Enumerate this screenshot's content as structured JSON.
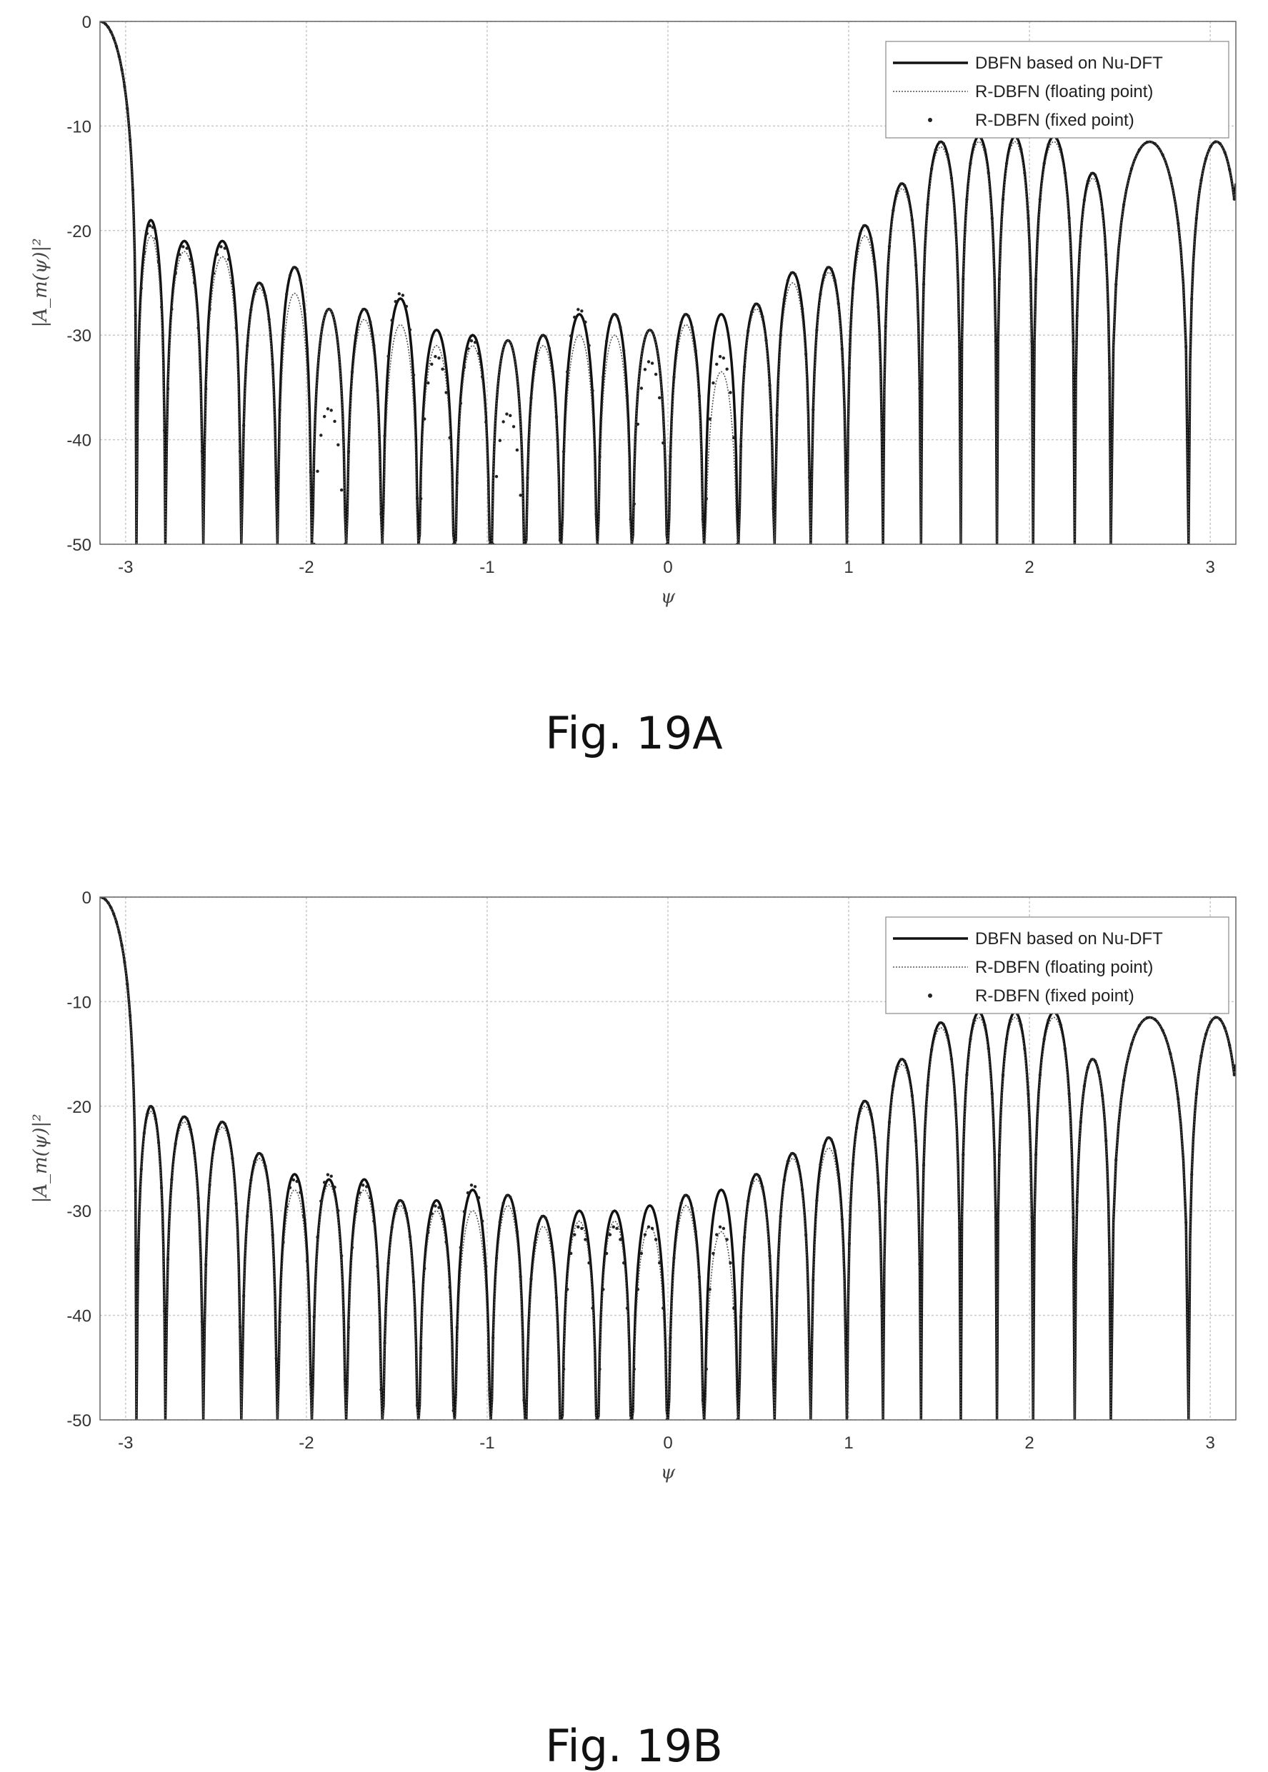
{
  "chart_data": [
    {
      "type": "line",
      "caption": "Fig. 19A",
      "xlabel": "ψ",
      "ylabel": "|A_m(ψ)|²",
      "xlim": [
        -3.1416,
        3.1416
      ],
      "ylim": [
        -50,
        0
      ],
      "xticks": [
        -3,
        -2,
        -1,
        0,
        1,
        2,
        3
      ],
      "yticks": [
        0,
        -10,
        -20,
        -30,
        -40,
        -50
      ],
      "grid": true,
      "legend_position": "top-right",
      "legend": [
        "DBFN based on Nu-DFT",
        "R-DBFN (floating point)",
        "R-DBFN (fixed point)"
      ],
      "nulls": [
        -2.94,
        -2.78,
        -2.57,
        -2.36,
        -2.16,
        -1.97,
        -1.78,
        -1.58,
        -1.38,
        -1.18,
        -0.98,
        -0.79,
        -0.59,
        -0.39,
        -0.2,
        0.0,
        0.2,
        0.39,
        0.59,
        0.79,
        0.99,
        1.19,
        1.4,
        1.62,
        1.82,
        2.02,
        2.25,
        2.45,
        2.88
      ],
      "series": [
        {
          "name": "DBFN based on Nu-DFT",
          "peaks": [
            -19,
            -21,
            -21,
            -25,
            -23.5,
            -27.5,
            -27.5,
            -26.5,
            -29.5,
            -30,
            -30.5,
            -30,
            -28,
            -28,
            -29.5,
            -28,
            -28,
            -27,
            -24,
            -23.5,
            -19.5,
            -15.5,
            -11.5,
            -11,
            -11,
            -11,
            -14.5,
            -11.5
          ],
          "end_value": -15.5
        },
        {
          "name": "R-DBFN (floating point)",
          "peaks": [
            -20.5,
            -22,
            -22.5,
            -25.5,
            -26,
            -27.5,
            -28.5,
            -29,
            -31,
            -31,
            -30.5,
            -31,
            -30,
            -30,
            -29.5,
            -29,
            -33.5,
            -27.5,
            -25,
            -24,
            -20.5,
            -16,
            -12,
            -11.5,
            -11.5,
            -11.5,
            -15,
            -11.5
          ],
          "end_value": -16
        },
        {
          "name": "R-DBFN (fixed point)",
          "peaks": [
            -19.5,
            -21.5,
            -21.5,
            -25,
            -23.5,
            -37,
            -27.5,
            -26,
            -32,
            -30.5,
            -37.5,
            -30,
            -27.5,
            -28,
            -32.5,
            -28,
            -32,
            -27,
            -24,
            -23.5,
            -19.5,
            -15.5,
            -11.5,
            -11,
            -11,
            -11,
            -14.5,
            -11.5
          ],
          "end_value": -15.5
        }
      ]
    },
    {
      "type": "line",
      "caption": "Fig. 19B",
      "xlabel": "ψ",
      "ylabel": "|A_m(ψ)|²",
      "xlim": [
        -3.1416,
        3.1416
      ],
      "ylim": [
        -50,
        0
      ],
      "xticks": [
        -3,
        -2,
        -1,
        0,
        1,
        2,
        3
      ],
      "yticks": [
        0,
        -10,
        -20,
        -30,
        -40,
        -50
      ],
      "grid": true,
      "legend_position": "top-right",
      "legend": [
        "DBFN based on Nu-DFT",
        "R-DBFN (floating point)",
        "R-DBFN (fixed point)"
      ],
      "nulls": [
        -2.94,
        -2.78,
        -2.57,
        -2.36,
        -2.16,
        -1.97,
        -1.78,
        -1.58,
        -1.38,
        -1.18,
        -0.98,
        -0.79,
        -0.59,
        -0.39,
        -0.2,
        0.0,
        0.2,
        0.39,
        0.59,
        0.79,
        0.99,
        1.19,
        1.4,
        1.62,
        1.82,
        2.02,
        2.25,
        2.45,
        2.88
      ],
      "series": [
        {
          "name": "DBFN based on Nu-DFT",
          "peaks": [
            -20,
            -21,
            -21.5,
            -24.5,
            -26.5,
            -27,
            -27,
            -29,
            -29,
            -28,
            -28.5,
            -30.5,
            -30,
            -30,
            -29.5,
            -28.5,
            -28,
            -26.5,
            -24.5,
            -23,
            -19.5,
            -15.5,
            -12,
            -11,
            -11,
            -11,
            -15.5,
            -11.5
          ],
          "end_value": -16
        },
        {
          "name": "R-DBFN (floating point)",
          "peaks": [
            -20.5,
            -21.5,
            -22,
            -25,
            -28,
            -27.5,
            -28,
            -29.5,
            -30,
            -30,
            -29.5,
            -31.5,
            -31,
            -31,
            -31.5,
            -29.5,
            -32,
            -27,
            -25,
            -24,
            -20,
            -16,
            -12.5,
            -11.5,
            -11.5,
            -11.5,
            -15.5,
            -11.5
          ],
          "end_value": -16.5
        },
        {
          "name": "R-DBFN (fixed point)",
          "peaks": [
            -20,
            -21,
            -21.5,
            -24.5,
            -27,
            -26.5,
            -27.5,
            -29,
            -29.5,
            -27.5,
            -28.5,
            -30.5,
            -31.5,
            -31.5,
            -31.5,
            -28.5,
            -31.5,
            -26.5,
            -24.5,
            -23,
            -19.5,
            -15.5,
            -12,
            -11,
            -11,
            -11,
            -15.5,
            -11.5
          ],
          "end_value": -16
        }
      ]
    }
  ]
}
